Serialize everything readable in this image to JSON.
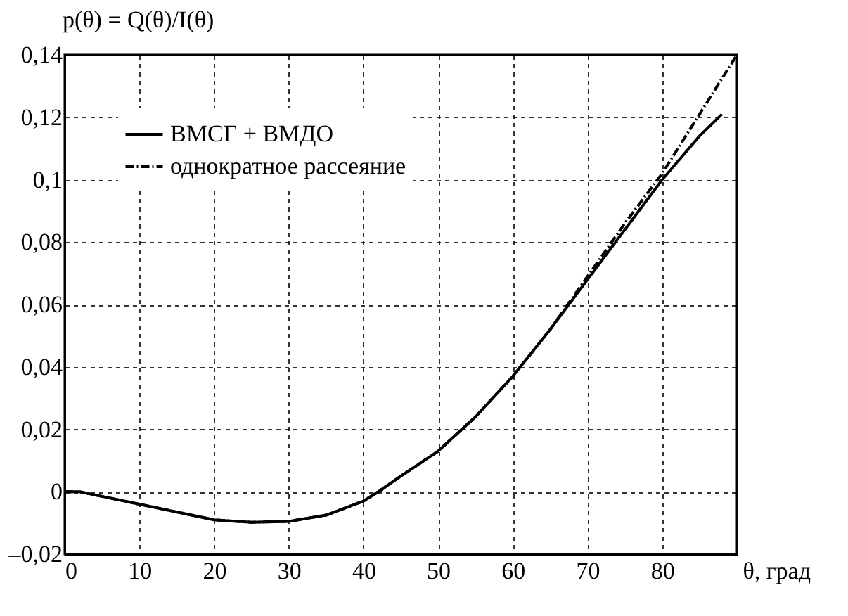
{
  "chart_data": {
    "type": "line",
    "ylabel": "p(θ) = Q(θ)/I(θ)",
    "xlabel": "θ,  град",
    "series": [
      {
        "name": "ВМСГ + ВМДО",
        "color": "#000000",
        "line_style": "solid",
        "x": [
          0,
          2,
          5,
          10,
          15,
          20,
          25,
          30,
          35,
          40,
          42,
          45,
          50,
          55,
          60,
          65,
          70,
          75,
          80,
          85,
          88
        ],
        "values": [
          0,
          0,
          -0.0015,
          -0.004,
          -0.0065,
          -0.009,
          -0.0098,
          -0.0095,
          -0.0075,
          -0.003,
          0,
          0.005,
          0.013,
          0.024,
          0.037,
          0.052,
          0.068,
          0.084,
          0.1,
          0.114,
          0.121
        ]
      },
      {
        "name": "однократное рассеяние",
        "color": "#000000",
        "line_style": "dashed",
        "x": [
          0,
          2,
          5,
          10,
          15,
          20,
          25,
          30,
          35,
          40,
          42,
          45,
          50,
          55,
          60,
          65,
          70,
          75,
          80,
          85,
          90
        ],
        "values": [
          0,
          0,
          -0.0015,
          -0.004,
          -0.0065,
          -0.009,
          -0.0098,
          -0.0095,
          -0.0075,
          -0.003,
          0,
          0.005,
          0.013,
          0.024,
          0.037,
          0.052,
          0.069,
          0.086,
          0.102,
          0.121,
          0.14
        ]
      }
    ],
    "xlim": [
      0,
      90
    ],
    "xticks": [
      0,
      10,
      20,
      30,
      40,
      50,
      60,
      70,
      80
    ],
    "ylim": [
      -0.02,
      0.14
    ],
    "yticks": [
      {
        "value": -0.02,
        "label": "–0,02"
      },
      {
        "value": 0,
        "label": "0"
      },
      {
        "value": 0.02,
        "label": "0,02"
      },
      {
        "value": 0.04,
        "label": "0,04"
      },
      {
        "value": 0.06,
        "label": "0,06"
      },
      {
        "value": 0.08,
        "label": "0,08"
      },
      {
        "value": 0.1,
        "label": "0,1"
      },
      {
        "value": 0.12,
        "label": "0,12"
      },
      {
        "value": 0.14,
        "label": "0,14"
      }
    ],
    "grid": true,
    "legend": "top left"
  }
}
